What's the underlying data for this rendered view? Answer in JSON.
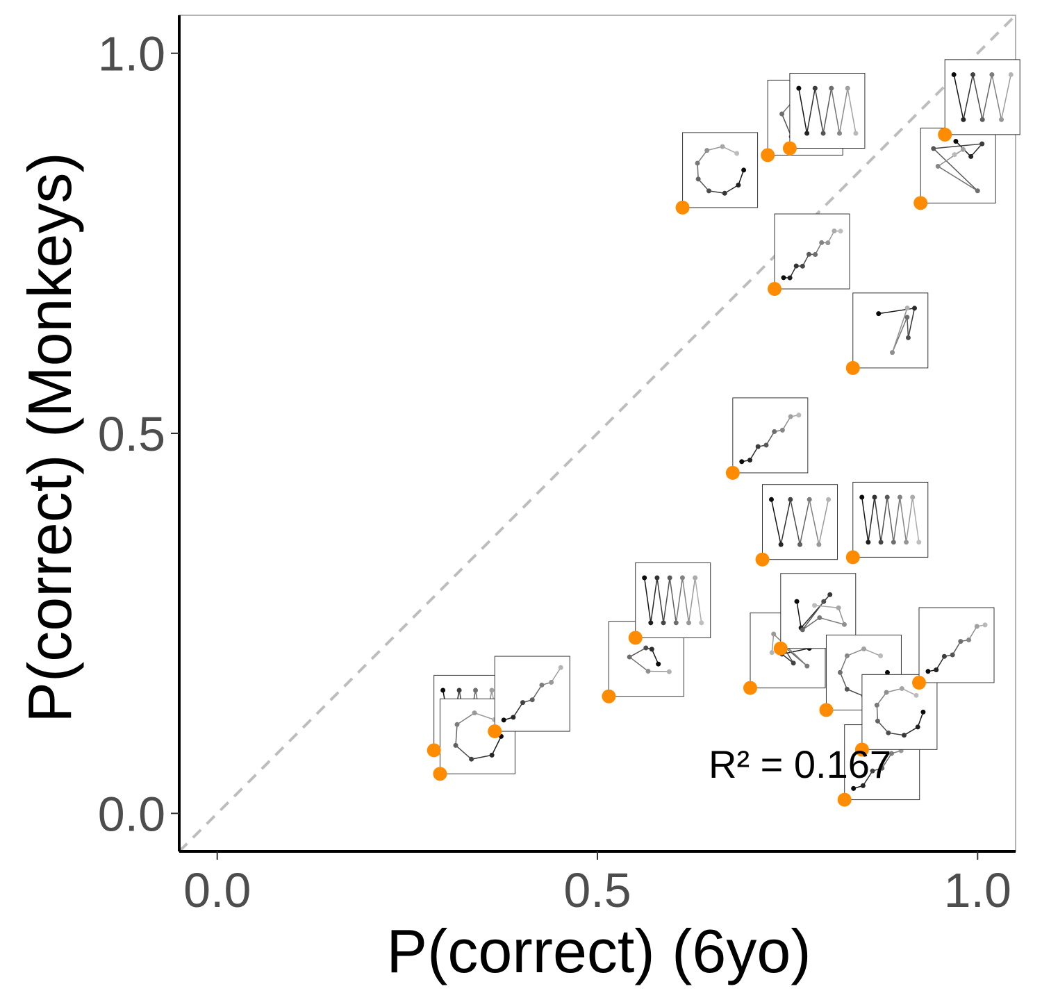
{
  "chart_data": {
    "type": "scatter",
    "xlabel": "P(correct)  (6yo)",
    "ylabel": "P(correct)  (Monkeys)",
    "xlim": [
      -0.05,
      1.05
    ],
    "ylim": [
      -0.05,
      1.05
    ],
    "x_ticks": [
      0.0,
      0.5,
      1.0
    ],
    "y_ticks": [
      0.0,
      0.5,
      1.0
    ],
    "x_tick_labels": [
      "0.0",
      "0.5",
      "1.0"
    ],
    "y_tick_labels": [
      "0.0",
      "0.5",
      "1.0"
    ],
    "grid": false,
    "reference_line": "y = x (dashed)",
    "annotation": "R² = 0.167",
    "point_color": "#ff8c00",
    "thumbnail_kind": "sequence-pattern-thumbnail",
    "points": [
      {
        "x": 0.285,
        "y": 0.083,
        "pattern": "zigzag-cluster"
      },
      {
        "x": 0.293,
        "y": 0.052,
        "pattern": "zigzag-cluster-2"
      },
      {
        "x": 0.365,
        "y": 0.108,
        "pattern": "zigzag-staircase"
      },
      {
        "x": 0.515,
        "y": 0.154,
        "pattern": "square-spiral"
      },
      {
        "x": 0.55,
        "y": 0.231,
        "pattern": "radial-fan"
      },
      {
        "x": 0.612,
        "y": 0.797,
        "pattern": "wave"
      },
      {
        "x": 0.678,
        "y": 0.448,
        "pattern": "zigzag-small"
      },
      {
        "x": 0.701,
        "y": 0.165,
        "pattern": "nested-squares"
      },
      {
        "x": 0.717,
        "y": 0.334,
        "pattern": "zigzag-wide"
      },
      {
        "x": 0.724,
        "y": 0.866,
        "pattern": "step-shape"
      },
      {
        "x": 0.733,
        "y": 0.69,
        "pattern": "staircase"
      },
      {
        "x": 0.741,
        "y": 0.217,
        "pattern": "double-square"
      },
      {
        "x": 0.753,
        "y": 0.875,
        "pattern": "meander"
      },
      {
        "x": 0.801,
        "y": 0.136,
        "pattern": "hourglass"
      },
      {
        "x": 0.825,
        "y": 0.018,
        "pattern": "crossing-lines"
      },
      {
        "x": 0.836,
        "y": 0.586,
        "pattern": "vertical-zigzag"
      },
      {
        "x": 0.836,
        "y": 0.337,
        "pattern": "spiral"
      },
      {
        "x": 0.848,
        "y": 0.084,
        "pattern": "hexagon"
      },
      {
        "x": 0.923,
        "y": 0.172,
        "pattern": "triangle"
      },
      {
        "x": 0.925,
        "y": 0.803,
        "pattern": "diagonal-steps"
      },
      {
        "x": 0.957,
        "y": 0.893,
        "pattern": "diagonal-line"
      }
    ]
  }
}
